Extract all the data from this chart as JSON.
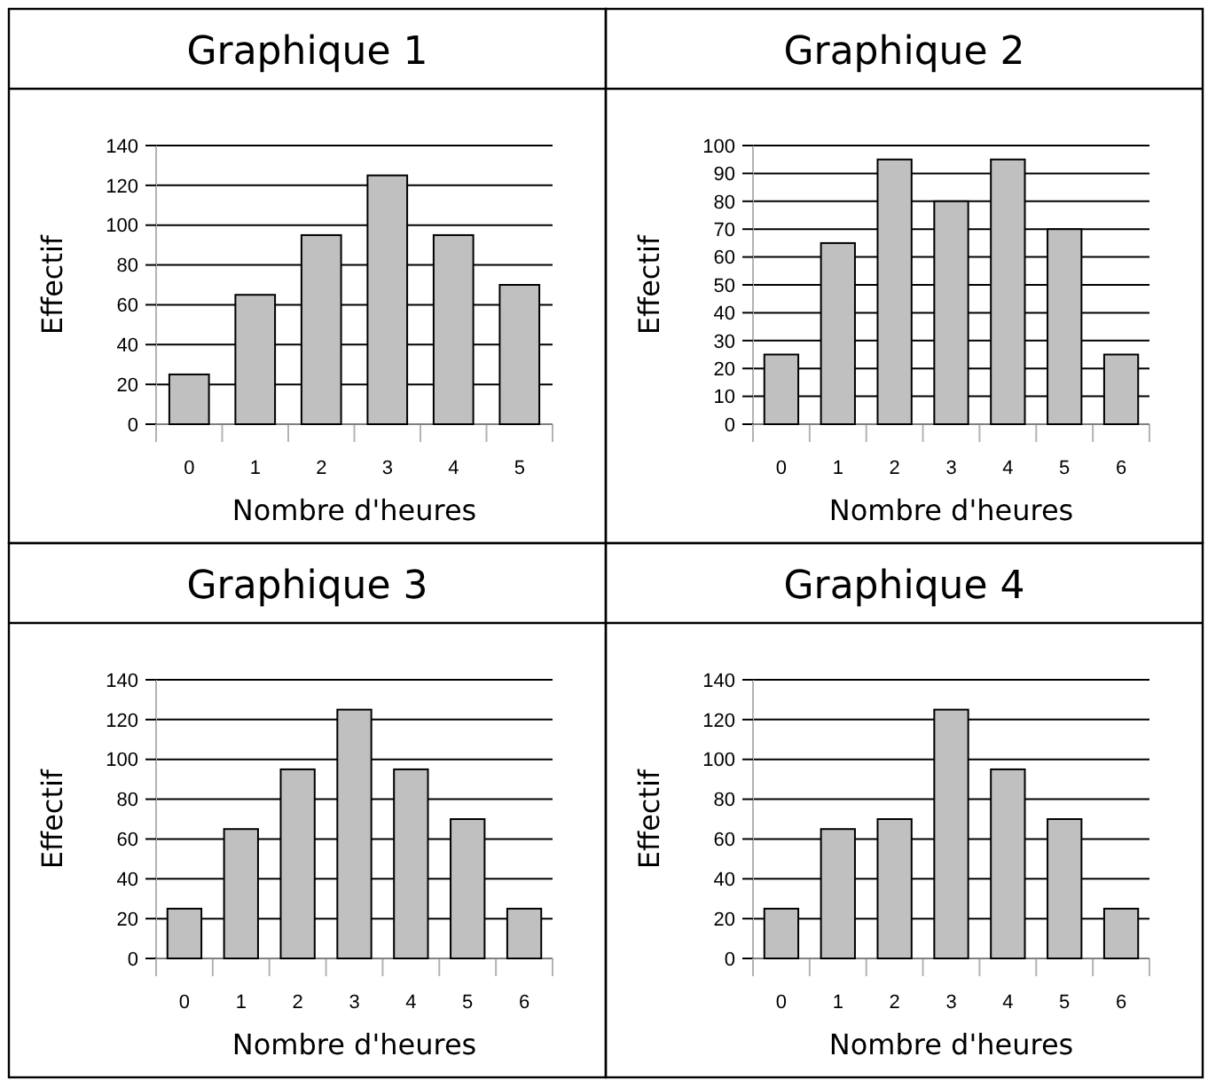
{
  "chart_data": [
    {
      "type": "bar",
      "title": "Graphique 1",
      "xlabel": "Nombre d'heures",
      "ylabel": "Effectif",
      "categories": [
        "0",
        "1",
        "2",
        "3",
        "4",
        "5"
      ],
      "values": [
        25,
        65,
        95,
        125,
        95,
        70
      ],
      "color": "#c0c0c0",
      "ylim": [
        0,
        140
      ],
      "yticks": [
        0,
        20,
        40,
        60,
        80,
        100,
        120,
        140
      ],
      "grid": "y"
    },
    {
      "type": "bar",
      "title": "Graphique 2",
      "xlabel": "Nombre d'heures",
      "ylabel": "Effectif",
      "categories": [
        "0",
        "1",
        "2",
        "3",
        "4",
        "5",
        "6"
      ],
      "values": [
        25,
        65,
        95,
        80,
        95,
        70,
        25
      ],
      "color": "#c0c0c0",
      "ylim": [
        0,
        100
      ],
      "yticks": [
        0,
        10,
        20,
        30,
        40,
        50,
        60,
        70,
        80,
        90,
        100
      ],
      "grid": "y"
    },
    {
      "type": "bar",
      "title": "Graphique 3",
      "xlabel": "Nombre d'heures",
      "ylabel": "Effectif",
      "categories": [
        "0",
        "1",
        "2",
        "3",
        "4",
        "5",
        "6"
      ],
      "values": [
        25,
        65,
        95,
        125,
        95,
        70,
        25
      ],
      "color": "#c0c0c0",
      "ylim": [
        0,
        140
      ],
      "yticks": [
        0,
        20,
        40,
        60,
        80,
        100,
        120,
        140
      ],
      "grid": "y"
    },
    {
      "type": "bar",
      "title": "Graphique 4",
      "xlabel": "Nombre d'heures",
      "ylabel": "Effectif",
      "categories": [
        "0",
        "1",
        "2",
        "3",
        "4",
        "5",
        "6"
      ],
      "values": [
        25,
        65,
        70,
        125,
        95,
        70,
        25
      ],
      "color": "#c0c0c0",
      "ylim": [
        0,
        140
      ],
      "yticks": [
        0,
        20,
        40,
        60,
        80,
        100,
        120,
        140
      ],
      "grid": "y"
    }
  ]
}
